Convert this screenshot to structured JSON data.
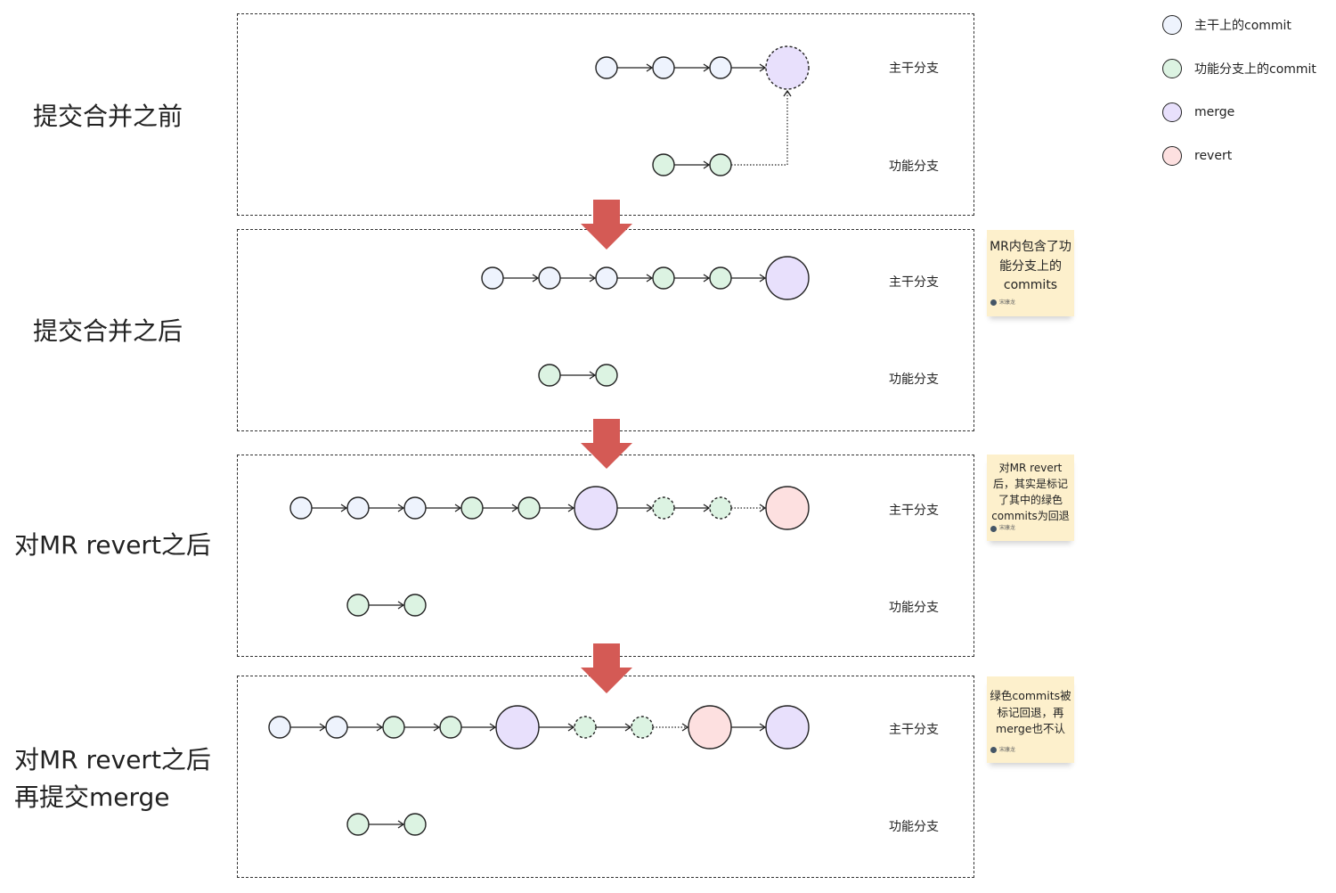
{
  "stages": [
    {
      "title": "提交合并之前"
    },
    {
      "title": "提交合并之后"
    },
    {
      "title": "对MR revert之后"
    },
    {
      "title_line1": "对MR revert之后",
      "title_line2": "再提交merge"
    }
  ],
  "branch_labels": {
    "main": "主干分支",
    "feature": "功能分支"
  },
  "legend": [
    {
      "label": "主干上的commit",
      "color": "#eef3fd"
    },
    {
      "label": "功能分支上的commit",
      "color": "#dcf3e2"
    },
    {
      "label": "merge",
      "color": "#e8e0fc"
    },
    {
      "label": "revert",
      "color": "#fde0e0"
    }
  ],
  "notes": [
    {
      "text": "MR内包含了功能分支上的commits",
      "author": "宋康龙"
    },
    {
      "text": "对MR revert后，其实是标记了其中的绿色commits为回退",
      "author": "宋康龙"
    },
    {
      "text": "绿色commits被标记回退，再merge也不认",
      "author": "宋康龙"
    }
  ],
  "colors": {
    "stage_arrow": "#d45a55",
    "note_bg": "#fdf0cc",
    "stroke": "#222222"
  }
}
